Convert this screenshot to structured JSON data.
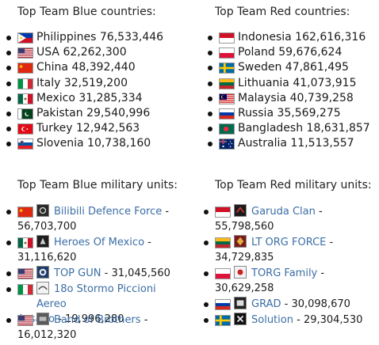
{
  "blue": {
    "countries_title": "Top Team Blue countries:",
    "countries": [
      {
        "name": "Philippines",
        "value": "76,533,446",
        "flag": "philippines-flag"
      },
      {
        "name": "USA",
        "value": "62,262,300",
        "flag": "usa-flag"
      },
      {
        "name": "China",
        "value": "48,392,440",
        "flag": "china-flag"
      },
      {
        "name": "Italy",
        "value": "32,519,200",
        "flag": "italy-flag"
      },
      {
        "name": "Mexico",
        "value": "31,285,334",
        "flag": "mexico-flag"
      },
      {
        "name": "Pakistan",
        "value": "29,540,996",
        "flag": "pakistan-flag"
      },
      {
        "name": "Turkey",
        "value": "12,942,563",
        "flag": "turkey-flag"
      },
      {
        "name": "Slovenia",
        "value": "10,738,160",
        "flag": "slovenia-flag"
      }
    ],
    "units_title": "Top Team Blue military units:",
    "units": [
      {
        "name": "Bilibili Defence Force",
        "value": "56,703,700",
        "flag": "china-flag",
        "icon": "unit-emblem-icon"
      },
      {
        "name": "Heroes Of Mexico",
        "value": "31,116,620",
        "flag": "mexico-flag",
        "icon": "unit-emblem-icon"
      },
      {
        "name": "TOP GUN",
        "value": "31,045,560",
        "flag": "usa-flag",
        "icon": "unit-emblem-icon"
      },
      {
        "name": "18o Stormo Piccioni Aereo",
        "name_cont": "Assalto",
        "value": "19,996,280",
        "flag": "italy-flag",
        "icon": "unit-emblem-icon"
      },
      {
        "name": "Band of Brothers",
        "value": "16,012,320",
        "flag": "usa-flag",
        "icon": "unit-emblem-icon"
      }
    ]
  },
  "red": {
    "countries_title": "Top Team Red countries:",
    "countries": [
      {
        "name": "Indonesia",
        "value": "162,616,316",
        "flag": "indonesia-flag"
      },
      {
        "name": "Poland",
        "value": "59,676,624",
        "flag": "poland-flag"
      },
      {
        "name": "Sweden",
        "value": "47,861,495",
        "flag": "sweden-flag"
      },
      {
        "name": "Lithuania",
        "value": "41,073,915",
        "flag": "lithuania-flag"
      },
      {
        "name": "Malaysia",
        "value": "40,739,258",
        "flag": "malaysia-flag"
      },
      {
        "name": "Russia",
        "value": "35,569,275",
        "flag": "russia-flag"
      },
      {
        "name": "Bangladesh",
        "value": "18,631,857",
        "flag": "bangladesh-flag"
      },
      {
        "name": "Australia",
        "value": "11,513,557",
        "flag": "australia-flag"
      }
    ],
    "units_title": "Top Team Red military units:",
    "units": [
      {
        "name": "Garuda Clan",
        "value": "55,798,560",
        "flag": "indonesia-flag",
        "icon": "unit-emblem-icon"
      },
      {
        "name": "LT ORG FORCE",
        "value": "34,729,835",
        "flag": "lithuania-flag",
        "icon": "unit-emblem-icon"
      },
      {
        "name": "TORG Family",
        "value": "30,629,258",
        "flag": "poland-flag",
        "icon": "unit-emblem-icon"
      },
      {
        "name": "GRAD",
        "value": "30,098,670",
        "flag": "russia-flag",
        "icon": "unit-emblem-icon"
      },
      {
        "name": "Solution",
        "value": "29,304,530",
        "flag": "sweden-flag",
        "icon": "unit-emblem-icon"
      }
    ]
  }
}
